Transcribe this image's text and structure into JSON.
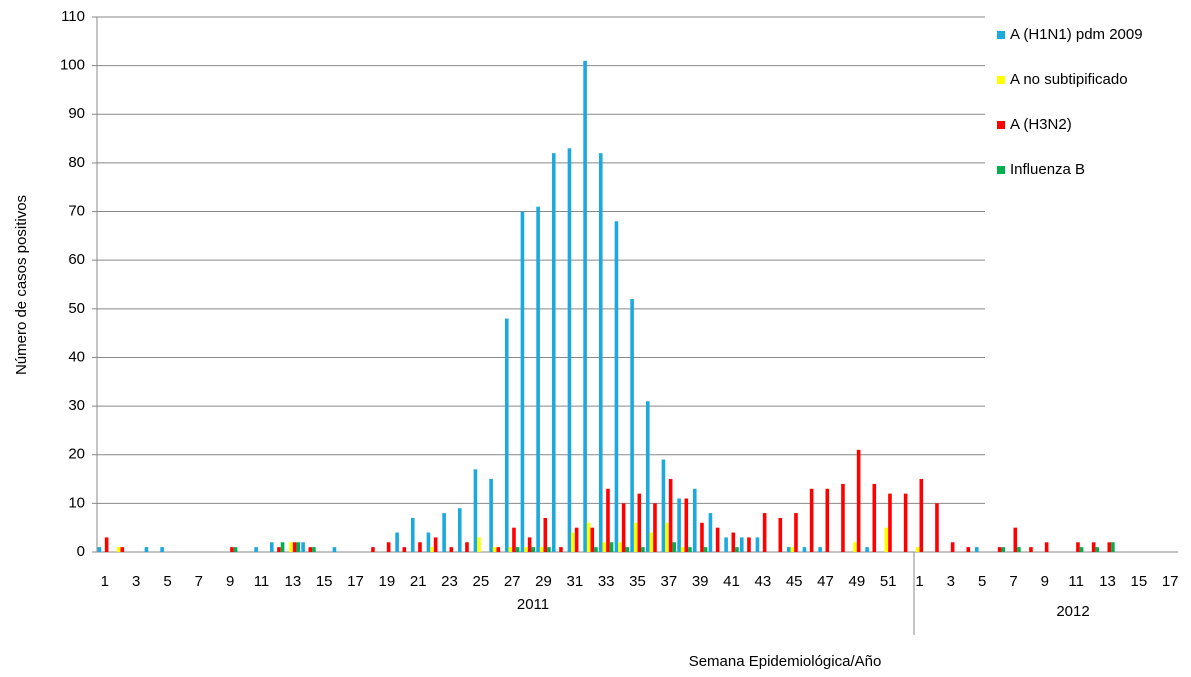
{
  "chart_data": {
    "type": "bar",
    "y_label": "Número de casos positivos",
    "x_label": "Semana Epidemiológica/Año",
    "annotations": [
      "2011",
      "2012"
    ],
    "categories": [
      "1",
      null,
      "3",
      null,
      "5",
      null,
      "7",
      null,
      "9",
      null,
      "11",
      null,
      "13",
      null,
      "15",
      null,
      "17",
      null,
      "19",
      null,
      "21",
      null,
      "23",
      null,
      "25",
      null,
      "27",
      null,
      "29",
      null,
      "31",
      null,
      "33",
      null,
      "35",
      null,
      "37",
      null,
      "39",
      null,
      "41",
      null,
      "43",
      null,
      "45",
      null,
      "47",
      null,
      "49",
      null,
      "51",
      null,
      "1",
      null,
      "3",
      null,
      "5",
      null,
      "7",
      null,
      "9",
      null,
      "11",
      null,
      "13",
      null,
      "15",
      null,
      "17"
    ],
    "series": [
      {
        "name": "A (H1N1) pdm 2009",
        "color": "#1ba9e0",
        "values": [
          1,
          0,
          0,
          1,
          1,
          0,
          0,
          0,
          0,
          0,
          1,
          2,
          0,
          2,
          0,
          1,
          0,
          0,
          0,
          4,
          7,
          4,
          8,
          9,
          17,
          15,
          48,
          70,
          71,
          82,
          83,
          101,
          82,
          68,
          52,
          31,
          19,
          11,
          13,
          8,
          3,
          3,
          3,
          0,
          1,
          1,
          1,
          0,
          0,
          1,
          0,
          0,
          0,
          0,
          0,
          0,
          1,
          0,
          0,
          0,
          0,
          0,
          0,
          0,
          0,
          0,
          0,
          0,
          0
        ]
      },
      {
        "name": "A no subtipificado",
        "color": "#ffff00",
        "values": [
          0,
          1,
          0,
          0,
          0,
          0,
          0,
          0,
          0,
          0,
          0,
          0,
          2,
          0,
          0,
          0,
          0,
          0,
          0,
          0,
          0,
          1,
          0,
          0,
          3,
          1,
          1,
          1,
          1,
          0,
          4,
          6,
          2,
          2,
          6,
          4,
          6,
          1,
          0,
          0,
          0,
          0,
          0,
          0,
          1,
          0,
          0,
          0,
          2,
          0,
          5,
          0,
          1,
          0,
          0,
          0,
          0,
          0,
          0,
          0,
          0,
          0,
          0,
          0,
          0,
          0,
          0,
          0,
          0
        ]
      },
      {
        "name": "A (H3N2)",
        "color": "#ff0000",
        "values": [
          3,
          1,
          0,
          0,
          0,
          0,
          0,
          0,
          1,
          0,
          0,
          1,
          2,
          1,
          0,
          0,
          0,
          1,
          2,
          1,
          2,
          3,
          1,
          2,
          0,
          1,
          5,
          3,
          7,
          1,
          5,
          5,
          13,
          10,
          12,
          10,
          15,
          11,
          6,
          5,
          4,
          3,
          8,
          7,
          8,
          13,
          13,
          14,
          21,
          14,
          12,
          12,
          15,
          10,
          2,
          1,
          0,
          1,
          5,
          1,
          2,
          0,
          2,
          2,
          2,
          0,
          0,
          0,
          0
        ]
      },
      {
        "name": "Influenza  B",
        "color": "#00b050",
        "values": [
          0,
          0,
          0,
          0,
          0,
          0,
          0,
          0,
          1,
          0,
          0,
          2,
          2,
          1,
          0,
          0,
          0,
          0,
          0,
          0,
          0,
          0,
          0,
          0,
          0,
          0,
          1,
          1,
          1,
          0,
          0,
          1,
          2,
          1,
          1,
          0,
          2,
          1,
          1,
          0,
          1,
          0,
          0,
          0,
          0,
          0,
          0,
          0,
          0,
          0,
          0,
          0,
          0,
          0,
          0,
          0,
          0,
          1,
          1,
          0,
          0,
          0,
          1,
          1,
          2,
          0,
          0,
          0,
          0
        ]
      }
    ],
    "ylim": [
      0,
      110
    ],
    "yticks": [
      0,
      10,
      20,
      30,
      40,
      50,
      60,
      70,
      80,
      90,
      100,
      110
    ],
    "grid": true,
    "legend": "right"
  }
}
